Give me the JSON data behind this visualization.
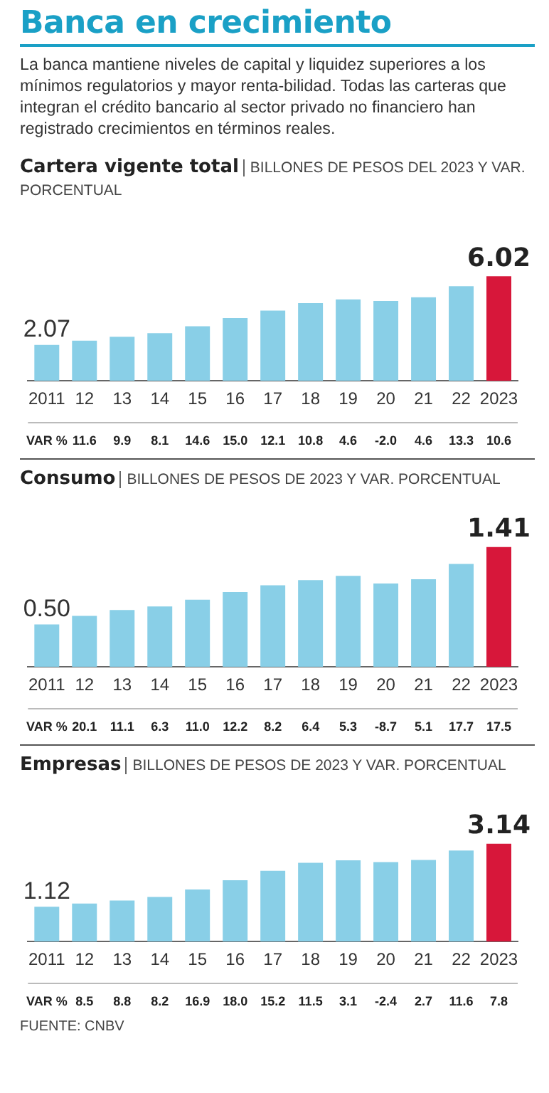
{
  "chart_data": [
    {
      "type": "other",
      "title": "Banca en crecimiento",
      "subtitle": "La banca mantiene niveles de capital y liquidez superiores a los mínimos regulatorios y mayor renta-bilidad. Todas las carteras que integran el crédito bancario al sector privado no financiero han registrado crecimientos en términos reales."
    },
    {
      "type": "bar",
      "title": "Cartera vigente total",
      "subtitle": "BILLONES DE PESOS DEL 2023 Y VAR. PORCENTUAL",
      "categories": [
        "2011",
        "12",
        "13",
        "14",
        "15",
        "16",
        "17",
        "18",
        "19",
        "20",
        "21",
        "22",
        "2023"
      ],
      "values": [
        2.07,
        2.31,
        2.54,
        2.74,
        3.14,
        3.61,
        4.05,
        4.48,
        4.69,
        4.6,
        4.81,
        5.45,
        6.02
      ],
      "colors": [
        "#89cfe7",
        "#89cfe7",
        "#89cfe7",
        "#89cfe7",
        "#89cfe7",
        "#89cfe7",
        "#89cfe7",
        "#89cfe7",
        "#89cfe7",
        "#89cfe7",
        "#89cfe7",
        "#89cfe7",
        "#d7173a"
      ],
      "value_labels": [
        "2.07",
        null,
        null,
        null,
        null,
        null,
        null,
        null,
        null,
        null,
        null,
        null,
        "6.02"
      ],
      "annotations": [
        "VAR %",
        "11.6",
        "9.9",
        "8.1",
        "14.6",
        "15.0",
        "12.1",
        "10.8",
        "4.6",
        "-2.0",
        "4.6",
        "13.3",
        "10.6"
      ]
    },
    {
      "type": "bar",
      "title": "Consumo",
      "subtitle": "BILLONES DE PESOS DE 2023 Y VAR. PORCENTUAL",
      "categories": [
        "2011",
        "12",
        "13",
        "14",
        "15",
        "16",
        "17",
        "18",
        "19",
        "20",
        "21",
        "22",
        "2023"
      ],
      "values": [
        0.5,
        0.6,
        0.67,
        0.71,
        0.79,
        0.88,
        0.96,
        1.02,
        1.07,
        0.98,
        1.03,
        1.21,
        1.41
      ],
      "colors": [
        "#89cfe7",
        "#89cfe7",
        "#89cfe7",
        "#89cfe7",
        "#89cfe7",
        "#89cfe7",
        "#89cfe7",
        "#89cfe7",
        "#89cfe7",
        "#89cfe7",
        "#89cfe7",
        "#89cfe7",
        "#d7173a"
      ],
      "value_labels": [
        "0.50",
        null,
        null,
        null,
        null,
        null,
        null,
        null,
        null,
        null,
        null,
        null,
        "1.41"
      ],
      "annotations": [
        "VAR %",
        "20.1",
        "11.1",
        "6.3",
        "11.0",
        "12.2",
        "8.2",
        "6.4",
        "5.3",
        "-8.7",
        "5.1",
        "17.7",
        "17.5"
      ]
    },
    {
      "type": "bar",
      "title": "Empresas",
      "subtitle": "BILLONES DE PESOS DE 2023 Y VAR. PORCENTUAL",
      "categories": [
        "2011",
        "12",
        "13",
        "14",
        "15",
        "16",
        "17",
        "18",
        "19",
        "20",
        "21",
        "22",
        "2023"
      ],
      "values": [
        1.12,
        1.22,
        1.32,
        1.43,
        1.67,
        1.97,
        2.27,
        2.53,
        2.61,
        2.55,
        2.62,
        2.92,
        3.14
      ],
      "colors": [
        "#89cfe7",
        "#89cfe7",
        "#89cfe7",
        "#89cfe7",
        "#89cfe7",
        "#89cfe7",
        "#89cfe7",
        "#89cfe7",
        "#89cfe7",
        "#89cfe7",
        "#89cfe7",
        "#89cfe7",
        "#d7173a"
      ],
      "value_labels": [
        "1.12",
        null,
        null,
        null,
        null,
        null,
        null,
        null,
        null,
        null,
        null,
        null,
        "3.14"
      ],
      "annotations": [
        "VAR %",
        "8.5",
        "8.8",
        "8.2",
        "16.9",
        "18.0",
        "15.2",
        "11.5",
        "3.1",
        "-2.4",
        "2.7",
        "11.6",
        "7.8",
        "FUENTE: CNBV"
      ]
    }
  ]
}
